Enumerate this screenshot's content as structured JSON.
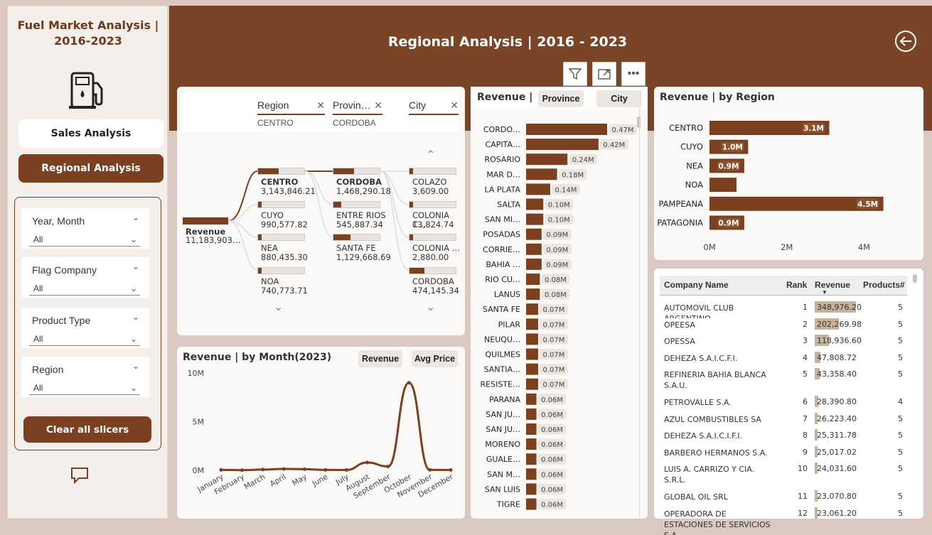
{
  "sidebar": {
    "title_line1": "Fuel Market Analysis |",
    "title_line2": "2016-2023",
    "nav": {
      "sales": "Sales Analysis",
      "regional": "Regional Analysis"
    },
    "slicers": [
      {
        "label": "Year, Month",
        "value": "All"
      },
      {
        "label": "Flag Company",
        "value": "All"
      },
      {
        "label": "Product Type",
        "value": "All"
      },
      {
        "label": "Region",
        "value": "All"
      }
    ],
    "clear_label": "Clear all slicers"
  },
  "header": {
    "title": "Regional Analysis | 2016 - 2023"
  },
  "decomp": {
    "cols": [
      {
        "title": "Region",
        "sub": "CENTRO"
      },
      {
        "title": "Provin…",
        "sub": "CORDOBA"
      },
      {
        "title": "City",
        "sub": ""
      }
    ],
    "root": {
      "label": "Revenue",
      "value": "11,183,903…"
    },
    "regions": [
      {
        "name": "CENTRO",
        "value": "3,143,846.21",
        "frac": 0.43
      },
      {
        "name": "CUYO",
        "value": "990,577.82",
        "frac": 0.08
      },
      {
        "name": "NEA",
        "value": "880,435.30",
        "frac": 0.07
      },
      {
        "name": "NOA",
        "value": "740,773.71",
        "frac": 0.06
      }
    ],
    "provinces": [
      {
        "name": "CORDOBA",
        "value": "1,468,290.18",
        "frac": 0.43
      },
      {
        "name": "ENTRE RIOS",
        "value": "545,887.34",
        "frac": 0.16
      },
      {
        "name": "SANTA FE",
        "value": "1,129,668.69",
        "frac": 0.36
      }
    ],
    "cities": [
      {
        "name": "COLAZO",
        "value": "3,609.00",
        "frac": 0.01
      },
      {
        "name": "COLONIA C…",
        "value": "13,824.74",
        "frac": 0.02
      },
      {
        "name": "COLONIA …",
        "value": "2,880.00",
        "frac": 0.01
      },
      {
        "name": "CORDOBA",
        "value": "474,145.34",
        "frac": 0.32
      }
    ]
  },
  "month_chart": {
    "title": "Revenue | by Month(2023)",
    "btn_revenue": "Revenue",
    "btn_price": "Avg Price",
    "chart_data": {
      "type": "line",
      "x": [
        "January",
        "February",
        "March",
        "April",
        "May",
        "June",
        "July",
        "August",
        "September",
        "October",
        "November",
        "December"
      ],
      "series": [
        {
          "values": [
            0.05,
            0.02,
            0.08,
            0.15,
            0.12,
            0.05,
            0.04,
            0.8,
            0.4,
            9.0,
            0.05,
            0.04
          ]
        }
      ],
      "yticks": [
        "10M",
        "5M",
        "0M"
      ],
      "ylim": [
        0,
        10
      ]
    }
  },
  "city_chart": {
    "title": "Revenue |",
    "btn_province": "Province",
    "btn_city": "City",
    "chart_data": {
      "type": "bar",
      "categories": [
        "CORDO…",
        "CAPITA…",
        "ROSARIO",
        "MAR D…",
        "LA PLATA",
        "SALTA",
        "SAN MI…",
        "POSADAS",
        "CORRIE…",
        "BAHIA …",
        "RIO CU…",
        "LANUS",
        "SANTA FE",
        "PILAR",
        "NEUQU…",
        "QUILMES",
        "SANTIA…",
        "RESISTE…",
        "PARANA",
        "SAN JU…",
        "SAN JU…",
        "MORENO",
        "GUALE…",
        "SAN M…",
        "SAN LUIS",
        "TIGRE"
      ],
      "values": [
        0.47,
        0.42,
        0.24,
        0.18,
        0.14,
        0.1,
        0.1,
        0.09,
        0.09,
        0.09,
        0.08,
        0.08,
        0.07,
        0.07,
        0.07,
        0.07,
        0.07,
        0.07,
        0.06,
        0.06,
        0.06,
        0.06,
        0.06,
        0.06,
        0.06,
        0.06
      ],
      "labels": [
        "0.47M",
        "0.42M",
        "0.24M",
        "0.18M",
        "0.14M",
        "0.10M",
        "0.10M",
        "0.09M",
        "0.09M",
        "0.09M",
        "0.08M",
        "0.08M",
        "0.07M",
        "0.07M",
        "0.07M",
        "0.07M",
        "0.07M",
        "0.07M",
        "0.06M",
        "0.06M",
        "0.06M",
        "0.06M",
        "0.06M",
        "0.06M",
        "0.06M",
        "0.06M"
      ]
    }
  },
  "region_chart": {
    "title": "Revenue | by Region",
    "chart_data": {
      "type": "bar",
      "categories": [
        "CENTRO",
        "CUYO",
        "NEA",
        "NOA",
        "PAMPEANA",
        "PATAGONIA"
      ],
      "values": [
        3.1,
        1.0,
        0.9,
        0.7,
        4.5,
        0.9
      ],
      "labels": [
        "3.1M",
        "1.0M",
        "0.9M",
        "",
        "4.5M",
        "0.9M"
      ],
      "xticks": [
        "0M",
        "2M",
        "4M"
      ],
      "xlim": [
        0,
        4.6
      ]
    }
  },
  "company_table": {
    "headers": {
      "name": "Company Name",
      "rank": "Rank",
      "revenue": "Revenue",
      "products": "Products#"
    },
    "rows": [
      {
        "name": "AUTOMOVIL CLUB ARGENTINO",
        "rank": "1",
        "revenue": "348,976.20",
        "frac": 1.0,
        "products": "5"
      },
      {
        "name": "OPEESA",
        "rank": "2",
        "revenue": "202,269.98",
        "frac": 0.58,
        "products": "5"
      },
      {
        "name": "OPESSA",
        "rank": "3",
        "revenue": "118,936.60",
        "frac": 0.34,
        "products": "5"
      },
      {
        "name": "DEHEZA S.A.I.C.F.I.",
        "rank": "4",
        "revenue": "47,808.72",
        "frac": 0.14,
        "products": "5"
      },
      {
        "name": "REFINERIA BAHIA BLANCA S.A.U.",
        "rank": "5",
        "revenue": "43,358.40",
        "frac": 0.12,
        "products": "5"
      },
      {
        "name": "PETROVALLE S.A.",
        "rank": "6",
        "revenue": "28,390.80",
        "frac": 0.08,
        "products": "4"
      },
      {
        "name": "AZUL COMBUSTIBLES SA",
        "rank": "7",
        "revenue": "26,223.40",
        "frac": 0.075,
        "products": "5"
      },
      {
        "name": "DEHEZA S.A.I.C.I.F.I.",
        "rank": "8",
        "revenue": "25,311.78",
        "frac": 0.072,
        "products": "5"
      },
      {
        "name": "BARBERO HERMANOS S.A.",
        "rank": "9",
        "revenue": "25,017.02",
        "frac": 0.071,
        "products": "5"
      },
      {
        "name": "LUIS A. CARRIZO Y CIA. S.R.L.",
        "rank": "10",
        "revenue": "24,031.60",
        "frac": 0.069,
        "products": "5"
      },
      {
        "name": "GLOBAL OIL SRL",
        "rank": "11",
        "revenue": "23,070.80",
        "frac": 0.066,
        "products": "5"
      },
      {
        "name": "OPERADORA DE ESTACIONES DE SERVICIOS S.A.",
        "rank": "12",
        "revenue": "23,061.20",
        "frac": 0.066,
        "products": "5"
      }
    ]
  },
  "colors": {
    "brand": "#7a4020",
    "header": "#7a4427",
    "bar_light": "#c6b39c"
  }
}
